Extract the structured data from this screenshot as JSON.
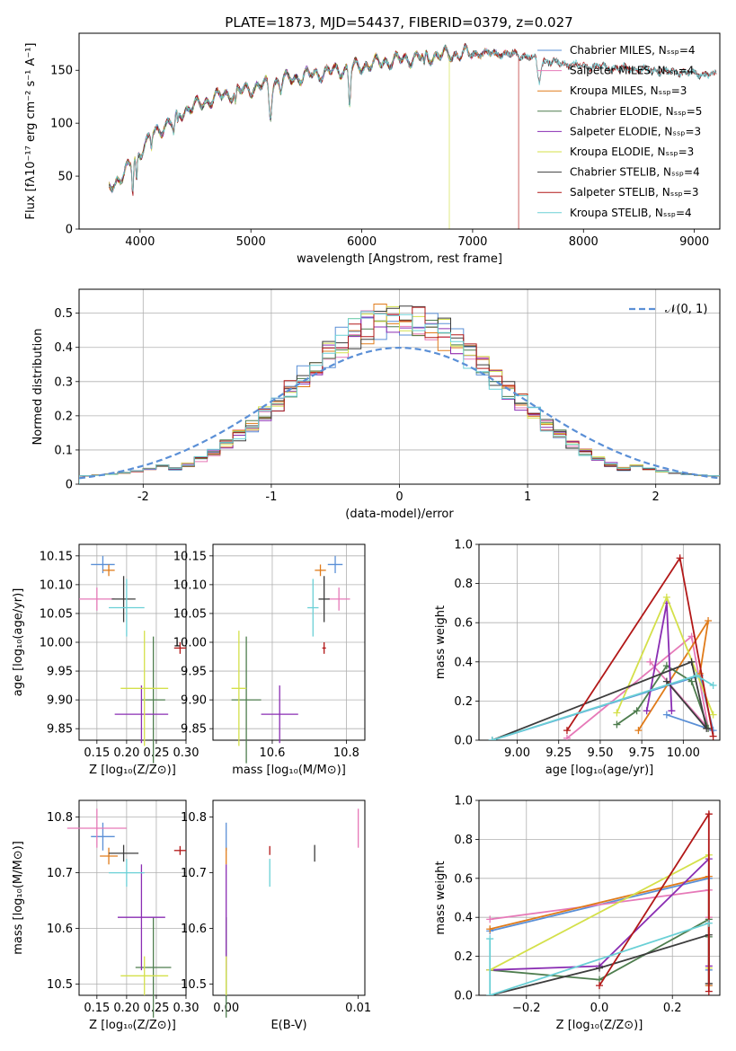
{
  "title": "PLATE=1873, MJD=54437, FIBERID=0379, z=0.027",
  "colors": [
    "#5a8fd6",
    "#e679b8",
    "#e07b1a",
    "#4e7d4e",
    "#8a2db3",
    "#d4e04a",
    "#3d3d3d",
    "#b21818",
    "#6ad0d6"
  ],
  "legend_labels": [
    "Chabrier MILES, Nₛₛₚ=4",
    "Salpeter MILES, Nₛₛₚ=4",
    "Kroupa MILES, Nₛₛₚ=3",
    "Chabrier ELODIE, Nₛₛₚ=5",
    "Salpeter ELODIE, Nₛₛₚ=3",
    "Kroupa ELODIE, Nₛₛₚ=3",
    "Chabrier STELIB, Nₛₛₚ=4",
    "Salpeter STELIB, Nₛₛₚ=3",
    "Kroupa STELIB, Nₛₛₚ=4"
  ],
  "chart_data": [
    {
      "id": "spectrum",
      "type": "line",
      "xlabel": "wavelength [Angstrom, rest frame]",
      "ylabel": "Flux [fλ10⁻¹⁷ erg cm⁻² s⁻¹ A⁻¹]",
      "xlim": [
        3450,
        9230
      ],
      "ylim": [
        0,
        185
      ],
      "xticks": [
        4000,
        5000,
        6000,
        7000,
        8000,
        9000
      ],
      "yticks": [
        0,
        50,
        100,
        150
      ],
      "grid": false,
      "legend": "upper right",
      "continuum": {
        "x": [
          3720,
          3900,
          4100,
          4400,
          4700,
          5000,
          5300,
          5600,
          5900,
          6200,
          6500,
          6800,
          7100,
          7400,
          7700,
          8000,
          8300,
          8600,
          8900,
          9200
        ],
        "y": [
          38,
          58,
          88,
          112,
          125,
          133,
          141,
          147,
          152,
          158,
          162,
          165,
          166,
          165,
          158,
          154,
          152,
          150,
          148,
          145
        ]
      },
      "series_drops": [
        {
          "series": "Kroupa ELODIE",
          "x": 6790
        },
        {
          "series": "Salpeter STELIB",
          "x": 7415
        }
      ]
    },
    {
      "id": "residuals",
      "type": "step",
      "xlabel": "(data-model)/error",
      "ylabel": "Normed distribution",
      "xlim": [
        -2.5,
        2.5
      ],
      "ylim": [
        0,
        0.57
      ],
      "xticks": [
        -2,
        -1,
        0,
        1,
        2
      ],
      "yticks": [
        0,
        0.1,
        0.2,
        0.3,
        0.4,
        0.5
      ],
      "grid": true,
      "legend": "upper right",
      "reference_label": "𝒩(0, 1)",
      "bins": {
        "start": -2.5,
        "width": 0.1,
        "count": 50
      },
      "reference": {
        "mean": 0,
        "sigma": 1,
        "color": "#5a8fd6"
      }
    },
    {
      "id": "age_vs_Z",
      "type": "errorbar",
      "xlabel": "Z [log₁₀(Z/Z⊙)]",
      "ylabel": "age  [log₁₀(age/yr)]",
      "xlim": [
        0.12,
        0.3
      ],
      "ylim": [
        9.83,
        10.17
      ],
      "xticks": [
        0.15,
        0.2,
        0.25,
        0.3
      ],
      "xticklabels": [
        "0.15",
        "0.20",
        "0.25",
        "0.30"
      ],
      "yticks": [
        9.85,
        9.9,
        9.95,
        10.0,
        10.05,
        10.1,
        10.15
      ],
      "yticklabels": [
        "9.85",
        "9.90",
        "9.95",
        "10.00",
        "10.05",
        "10.10",
        "10.15"
      ],
      "grid": true,
      "points": [
        {
          "x": 0.16,
          "y": 10.135,
          "xerr": 0.02,
          "yerr": 0.015
        },
        {
          "x": 0.15,
          "y": 10.075,
          "xerr": 0.03,
          "yerr": 0.02
        },
        {
          "x": 0.17,
          "y": 10.125,
          "xerr": 0.01,
          "yerr": 0.01
        },
        {
          "x": 0.245,
          "y": 9.9,
          "xerr": 0.02,
          "yerr": 0.11
        },
        {
          "x": 0.225,
          "y": 9.875,
          "xerr": 0.045,
          "yerr": 0.05
        },
        {
          "x": 0.23,
          "y": 9.92,
          "xerr": 0.04,
          "yerr": 0.1
        },
        {
          "x": 0.195,
          "y": 10.075,
          "xerr": 0.02,
          "yerr": 0.04
        },
        {
          "x": 0.29,
          "y": 9.99,
          "xerr": 0.01,
          "yerr": 0.01
        },
        {
          "x": 0.2,
          "y": 10.06,
          "xerr": 0.03,
          "yerr": 0.05
        }
      ]
    },
    {
      "id": "age_vs_mass",
      "type": "errorbar",
      "xlabel": "mass [log₁₀(M/M⊙)]",
      "ylabel": "",
      "xlim": [
        10.44,
        10.85
      ],
      "ylim": [
        9.83,
        10.17
      ],
      "xticks": [
        10.6,
        10.8
      ],
      "xticklabels": [
        "10.6",
        "10.8"
      ],
      "yticks": [
        9.85,
        9.9,
        9.95,
        10.0,
        10.05,
        10.1,
        10.15
      ],
      "yticklabels": [
        "9.85",
        "9.90",
        "9.95",
        "10.00",
        "10.05",
        "10.10",
        "10.15"
      ],
      "grid": true,
      "points": [
        {
          "x": 10.77,
          "y": 10.135,
          "xerr": 0.02,
          "yerr": 0.015
        },
        {
          "x": 10.78,
          "y": 10.075,
          "xerr": 0.03,
          "yerr": 0.02
        },
        {
          "x": 10.73,
          "y": 10.125,
          "xerr": 0.015,
          "yerr": 0.01
        },
        {
          "x": 10.53,
          "y": 9.9,
          "xerr": 0.04,
          "yerr": 0.11
        },
        {
          "x": 10.62,
          "y": 9.875,
          "xerr": 0.05,
          "yerr": 0.05
        },
        {
          "x": 10.51,
          "y": 9.92,
          "xerr": 0.02,
          "yerr": 0.1
        },
        {
          "x": 10.74,
          "y": 10.075,
          "xerr": 0.015,
          "yerr": 0.04
        },
        {
          "x": 10.74,
          "y": 9.99,
          "xerr": 0.005,
          "yerr": 0.01
        },
        {
          "x": 10.71,
          "y": 10.06,
          "xerr": 0.015,
          "yerr": 0.05
        }
      ]
    },
    {
      "id": "weight_vs_age",
      "type": "line",
      "xlabel": "age  [log₁₀(age/yr)]",
      "ylabel": "mass weight",
      "xlim": [
        8.77,
        10.22
      ],
      "ylim": [
        0,
        1.0
      ],
      "xticks": [
        9.0,
        9.25,
        9.5,
        9.75,
        10.0
      ],
      "xticklabels": [
        "9.00",
        "9.25",
        "9.50",
        "9.75",
        "10.00"
      ],
      "yticks": [
        0,
        0.2,
        0.4,
        0.6,
        0.8,
        1.0
      ],
      "yticklabels": [
        "0.0",
        "0.2",
        "0.4",
        "0.6",
        "0.8",
        "1.0"
      ],
      "grid": true,
      "series": [
        {
          "x": [
            8.85,
            10.1,
            10.18,
            9.9
          ],
          "y": [
            0,
            0.33,
            0.05,
            0.13
          ]
        },
        {
          "x": [
            9.3,
            10.05,
            10.15,
            9.8
          ],
          "y": [
            0.01,
            0.53,
            0.06,
            0.4
          ]
        },
        {
          "x": [
            9.73,
            10.15,
            10.1
          ],
          "y": [
            0.05,
            0.61,
            0.34
          ]
        },
        {
          "x": [
            9.6,
            9.72,
            9.9,
            10.05,
            10.15
          ],
          "y": [
            0.08,
            0.15,
            0.38,
            0.3,
            0.06
          ]
        },
        {
          "x": [
            9.78,
            9.9,
            9.93
          ],
          "y": [
            0.15,
            0.7,
            0.15
          ]
        },
        {
          "x": [
            9.6,
            9.9,
            10.18
          ],
          "y": [
            0.14,
            0.73,
            0.13
          ]
        },
        {
          "x": [
            8.85,
            10.05,
            10.14,
            9.9
          ],
          "y": [
            0,
            0.4,
            0.06,
            0.3
          ]
        },
        {
          "x": [
            9.3,
            9.98,
            10.18
          ],
          "y": [
            0.05,
            0.93,
            0.02
          ]
        },
        {
          "x": [
            8.85,
            10.08,
            10.18
          ],
          "y": [
            0,
            0.33,
            0.28
          ]
        }
      ]
    },
    {
      "id": "mass_vs_Z",
      "type": "errorbar",
      "xlabel": "Z [log₁₀(Z/Z⊙)]",
      "ylabel": "mass [log₁₀(M/M⊙)]",
      "xlim": [
        0.12,
        0.3
      ],
      "ylim": [
        10.48,
        10.83
      ],
      "xticks": [
        0.15,
        0.2,
        0.25,
        0.3
      ],
      "xticklabels": [
        "0.15",
        "0.20",
        "0.25",
        "0.30"
      ],
      "yticks": [
        10.5,
        10.6,
        10.7,
        10.8
      ],
      "yticklabels": [
        "10.5",
        "10.6",
        "10.7",
        "10.8"
      ],
      "grid": true,
      "points": [
        {
          "x": 0.16,
          "y": 10.765,
          "xerr": 0.02,
          "yerr": 0.025
        },
        {
          "x": 0.15,
          "y": 10.78,
          "xerr": 0.05,
          "yerr": 0.035
        },
        {
          "x": 0.17,
          "y": 10.73,
          "xerr": 0.015,
          "yerr": 0.015
        },
        {
          "x": 0.245,
          "y": 10.53,
          "xerr": 0.03,
          "yerr": 0.09
        },
        {
          "x": 0.225,
          "y": 10.62,
          "xerr": 0.04,
          "yerr": 0.095
        },
        {
          "x": 0.23,
          "y": 10.515,
          "xerr": 0.04,
          "yerr": 0.035
        },
        {
          "x": 0.195,
          "y": 10.735,
          "xerr": 0.025,
          "yerr": 0.015
        },
        {
          "x": 0.29,
          "y": 10.74,
          "xerr": 0.01,
          "yerr": 0.008
        },
        {
          "x": 0.2,
          "y": 10.7,
          "xerr": 0.03,
          "yerr": 0.025
        }
      ]
    },
    {
      "id": "mass_vs_EBV",
      "type": "errorbar",
      "xlabel": "E(B-V)",
      "ylabel": "",
      "xlim": [
        -0.001,
        0.0105
      ],
      "ylim": [
        10.48,
        10.83
      ],
      "xticks": [
        0.0,
        0.01
      ],
      "xticklabels": [
        "0.00",
        "0.01"
      ],
      "yticks": [
        10.5,
        10.6,
        10.7,
        10.8
      ],
      "yticklabels": [
        "10.5",
        "10.6",
        "10.7",
        "10.8"
      ],
      "grid": false,
      "points": [
        {
          "x": 0.0,
          "y": 10.765,
          "xerr": 0,
          "yerr": 0.025
        },
        {
          "x": 0.01,
          "y": 10.78,
          "xerr": 0,
          "yerr": 0.035
        },
        {
          "x": 0.0,
          "y": 10.73,
          "xerr": 0,
          "yerr": 0.015
        },
        {
          "x": 0.0,
          "y": 10.53,
          "xerr": 0,
          "yerr": 0.09
        },
        {
          "x": 0.0,
          "y": 10.62,
          "xerr": 0,
          "yerr": 0.095
        },
        {
          "x": 0.0,
          "y": 10.515,
          "xerr": 0,
          "yerr": 0.035
        },
        {
          "x": 0.0067,
          "y": 10.735,
          "xerr": 0,
          "yerr": 0.015
        },
        {
          "x": 0.0033,
          "y": 10.74,
          "xerr": 0,
          "yerr": 0.008
        },
        {
          "x": 0.0033,
          "y": 10.7,
          "xerr": 0,
          "yerr": 0.025
        }
      ]
    },
    {
      "id": "weight_vs_Z",
      "type": "line",
      "xlabel": "Z [log₁₀(Z/Z⊙)]",
      "ylabel": "mass weight",
      "xlim": [
        -0.33,
        0.33
      ],
      "ylim": [
        0,
        1.0
      ],
      "xticks": [
        -0.2,
        0.0,
        0.2
      ],
      "xticklabels": [
        "−0.2",
        "0.0",
        "0.2"
      ],
      "yticks": [
        0,
        0.2,
        0.4,
        0.6,
        0.8,
        1.0
      ],
      "yticklabels": [
        "0.0",
        "0.2",
        "0.4",
        "0.6",
        "0.8",
        "1.0"
      ],
      "grid": true,
      "series": [
        {
          "x": [
            -0.3,
            0.3,
            0.3,
            0.3
          ],
          "y": [
            0.33,
            0.6,
            0.05,
            0.13
          ]
        },
        {
          "x": [
            -0.3,
            0.3,
            0.3,
            0.3
          ],
          "y": [
            0.39,
            0.54,
            0.06,
            0.4
          ]
        },
        {
          "x": [
            -0.3,
            0.3,
            0.3
          ],
          "y": [
            0.34,
            0.61,
            0.05
          ]
        },
        {
          "x": [
            -0.3,
            0.0,
            0.3,
            0.3,
            0.3
          ],
          "y": [
            0.13,
            0.08,
            0.39,
            0.3,
            0.06
          ]
        },
        {
          "x": [
            -0.3,
            0.0,
            0.3,
            0.3
          ],
          "y": [
            0.13,
            0.15,
            0.7,
            0.15
          ]
        },
        {
          "x": [
            -0.3,
            0.3,
            0.3
          ],
          "y": [
            0.13,
            0.72,
            0.14
          ]
        },
        {
          "x": [
            -0.3,
            0.0,
            0.3,
            0.3
          ],
          "y": [
            0.0,
            0.14,
            0.31,
            0.06
          ]
        },
        {
          "x": [
            0.0,
            0.3,
            0.3
          ],
          "y": [
            0.05,
            0.93,
            0.02
          ]
        },
        {
          "x": [
            -0.3,
            -0.3,
            0.3
          ],
          "y": [
            0.29,
            0.0,
            0.37
          ]
        }
      ]
    }
  ]
}
